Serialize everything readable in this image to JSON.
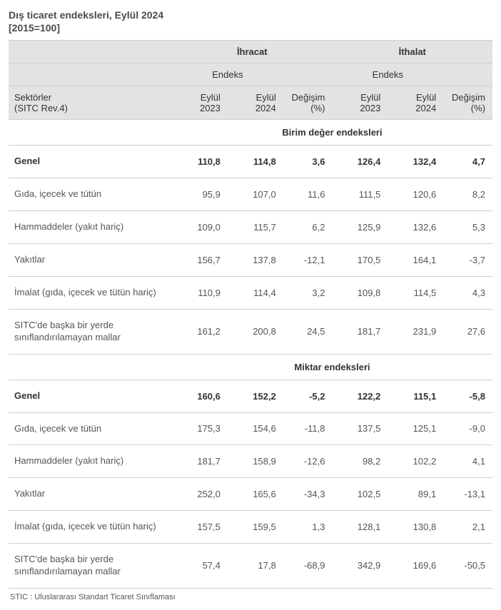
{
  "title_line1": "Dış ticaret endeksleri, Eylül 2024",
  "title_line2": "[2015=100]",
  "headers": {
    "ihracat": "İhracat",
    "ithalat": "İthalat",
    "endeks": "Endeks",
    "sektorler_l1": "Sektörler",
    "sektorler_l2": "(SITC Rev.4)",
    "eylul2023_l1": "Eylül",
    "eylul2023_l2": "2023",
    "eylul2024_l1": "Eylül",
    "eylul2024_l2": "2024",
    "degisim_l1": "Değişim",
    "degisim_l2": "(%)"
  },
  "sections": {
    "birim": "Birim değer endeksleri",
    "miktar": "Miktar endeksleri"
  },
  "rows_birim": [
    {
      "sector": "Genel",
      "ihr23": "110,8",
      "ihr24": "114,8",
      "ihrD": "3,6",
      "ith23": "126,4",
      "ith24": "132,4",
      "ithD": "4,7",
      "bold": true
    },
    {
      "sector": "Gıda, içecek ve tütün",
      "ihr23": "95,9",
      "ihr24": "107,0",
      "ihrD": "11,6",
      "ith23": "111,5",
      "ith24": "120,6",
      "ithD": "8,2",
      "bold": false
    },
    {
      "sector": "Hammaddeler (yakıt hariç)",
      "ihr23": "109,0",
      "ihr24": "115,7",
      "ihrD": "6,2",
      "ith23": "125,9",
      "ith24": "132,6",
      "ithD": "5,3",
      "bold": false
    },
    {
      "sector": "Yakıtlar",
      "ihr23": "156,7",
      "ihr24": "137,8",
      "ihrD": "-12,1",
      "ith23": "170,5",
      "ith24": "164,1",
      "ithD": "-3,7",
      "bold": false
    },
    {
      "sector": "İmalat (gıda, içecek ve tütün hariç)",
      "ihr23": "110,9",
      "ihr24": "114,4",
      "ihrD": "3,2",
      "ith23": "109,8",
      "ith24": "114,5",
      "ithD": "4,3",
      "bold": false
    },
    {
      "sector": "SITC'de başka bir yerde sınıflandırılamayan mallar",
      "ihr23": "161,2",
      "ihr24": "200,8",
      "ihrD": "24,5",
      "ith23": "181,7",
      "ith24": "231,9",
      "ithD": "27,6",
      "bold": false
    }
  ],
  "rows_miktar": [
    {
      "sector": "Genel",
      "ihr23": "160,6",
      "ihr24": "152,2",
      "ihrD": "-5,2",
      "ith23": "122,2",
      "ith24": "115,1",
      "ithD": "-5,8",
      "bold": true
    },
    {
      "sector": "Gıda, içecek ve tütün",
      "ihr23": "175,3",
      "ihr24": "154,6",
      "ihrD": "-11,8",
      "ith23": "137,5",
      "ith24": "125,1",
      "ithD": "-9,0",
      "bold": false
    },
    {
      "sector": "Hammaddeler (yakıt hariç)",
      "ihr23": "181,7",
      "ihr24": "158,9",
      "ihrD": "-12,6",
      "ith23": "98,2",
      "ith24": "102,2",
      "ithD": "4,1",
      "bold": false
    },
    {
      "sector": "Yakıtlar",
      "ihr23": "252,0",
      "ihr24": "165,6",
      "ihrD": "-34,3",
      "ith23": "102,5",
      "ith24": "89,1",
      "ithD": "-13,1",
      "bold": false
    },
    {
      "sector": "İmalat (gıda, içecek ve tütün hariç)",
      "ihr23": "157,5",
      "ihr24": "159,5",
      "ihrD": "1,3",
      "ith23": "128,1",
      "ith24": "130,8",
      "ithD": "2,1",
      "bold": false
    },
    {
      "sector": "SITC'de başka bir yerde sınıflandırılamayan mallar",
      "ihr23": "57,4",
      "ihr24": "17,8",
      "ihrD": "-68,9",
      "ith23": "342,9",
      "ith24": "169,6",
      "ithD": "-50,5",
      "bold": false
    }
  ],
  "footer": "STIC : Uluslararası Standart Ticaret Sınıflaması"
}
